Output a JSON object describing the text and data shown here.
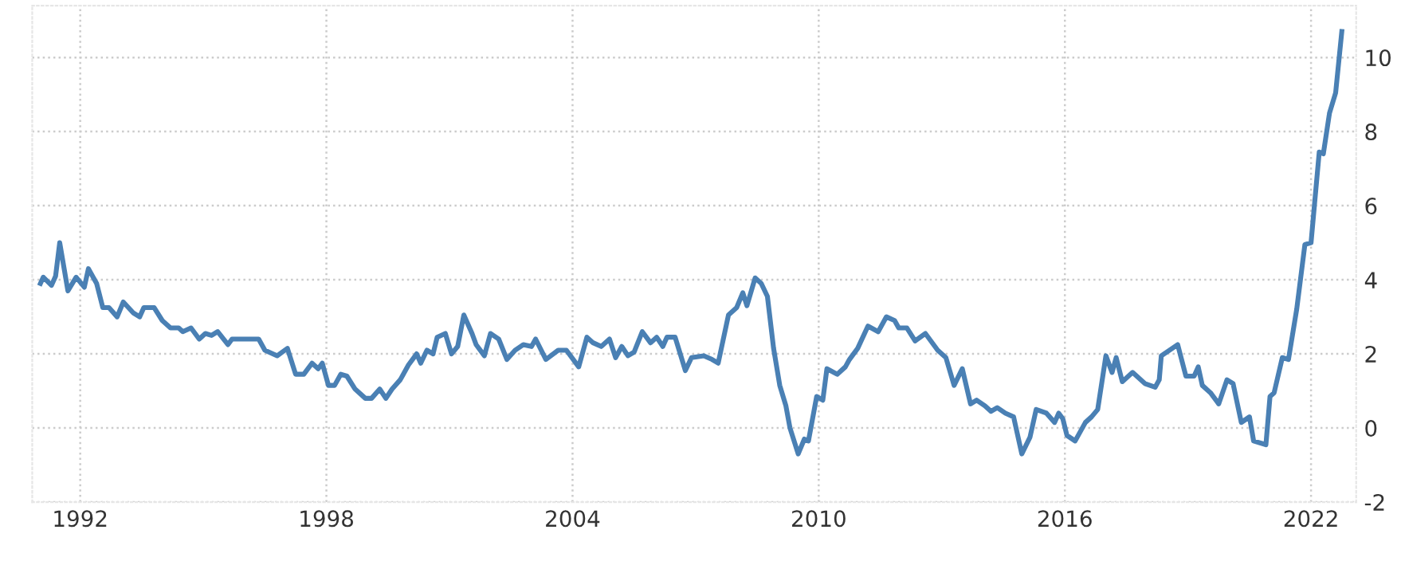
{
  "chart_data": {
    "type": "line",
    "grid": true,
    "marker": "none",
    "line_style": "solid",
    "xlim": [
      1990.83,
      2023.1
    ],
    "xticks": [
      1992,
      1998,
      2004,
      2010,
      2016,
      2022
    ],
    "ylim": [
      -2,
      11.4
    ],
    "yticks": [
      -2,
      0,
      2,
      4,
      6,
      8,
      10
    ],
    "series": [
      {
        "color": "#4a80b4",
        "x": [
          1991.03,
          1991.1,
          1991.3,
          1991.4,
          1991.5,
          1991.7,
          1991.9,
          1992.1,
          1992.2,
          1992.4,
          1992.55,
          1992.7,
          1992.9,
          1993.05,
          1993.3,
          1993.45,
          1993.55,
          1993.8,
          1994.0,
          1994.2,
          1994.4,
          1994.5,
          1994.7,
          1994.9,
          1995.05,
          1995.2,
          1995.35,
          1995.6,
          1995.7,
          1996.35,
          1996.5,
          1996.8,
          1997.05,
          1997.25,
          1997.45,
          1997.65,
          1997.8,
          1997.9,
          1998.05,
          1998.2,
          1998.35,
          1998.5,
          1998.7,
          1998.95,
          1999.1,
          1999.3,
          1999.45,
          1999.6,
          1999.8,
          2000.0,
          2000.2,
          2000.3,
          2000.45,
          2000.6,
          2000.7,
          2000.9,
          2001.05,
          2001.2,
          2001.35,
          2001.55,
          2001.65,
          2001.85,
          2002.0,
          2002.2,
          2002.4,
          2002.6,
          2002.8,
          2003.0,
          2003.1,
          2003.35,
          2003.65,
          2003.85,
          2004.15,
          2004.35,
          2004.5,
          2004.7,
          2004.9,
          2005.05,
          2005.2,
          2005.35,
          2005.5,
          2005.7,
          2005.9,
          2006.05,
          2006.2,
          2006.3,
          2006.5,
          2006.75,
          2006.9,
          2007.2,
          2007.4,
          2007.55,
          2007.8,
          2008.0,
          2008.15,
          2008.25,
          2008.45,
          2008.6,
          2008.75,
          2008.9,
          2009.05,
          2009.2,
          2009.3,
          2009.5,
          2009.65,
          2009.75,
          2009.95,
          2010.1,
          2010.2,
          2010.45,
          2010.65,
          2010.75,
          2010.95,
          2011.2,
          2011.45,
          2011.65,
          2011.85,
          2011.95,
          2012.15,
          2012.35,
          2012.6,
          2012.9,
          2013.1,
          2013.3,
          2013.5,
          2013.7,
          2013.85,
          2014.05,
          2014.2,
          2014.35,
          2014.55,
          2014.75,
          2014.95,
          2015.15,
          2015.3,
          2015.55,
          2015.75,
          2015.85,
          2015.95,
          2016.05,
          2016.25,
          2016.5,
          2016.65,
          2016.8,
          2017.0,
          2017.15,
          2017.25,
          2017.4,
          2017.65,
          2017.8,
          2017.95,
          2018.2,
          2018.3,
          2018.35,
          2018.55,
          2018.75,
          2018.95,
          2019.15,
          2019.25,
          2019.35,
          2019.55,
          2019.75,
          2019.95,
          2020.1,
          2020.3,
          2020.5,
          2020.6,
          2020.9,
          2021.0,
          2021.1,
          2021.3,
          2021.45,
          2021.65,
          2021.85,
          2022.0,
          2022.2,
          2022.3,
          2022.45,
          2022.6,
          2022.75
        ],
        "values": [
          3.9,
          4.07,
          3.85,
          4.1,
          5.0,
          3.7,
          4.07,
          3.8,
          4.3,
          3.9,
          3.25,
          3.25,
          3.0,
          3.4,
          3.1,
          3.0,
          3.25,
          3.25,
          2.9,
          2.7,
          2.7,
          2.6,
          2.7,
          2.4,
          2.55,
          2.5,
          2.6,
          2.25,
          2.4,
          2.4,
          2.1,
          1.95,
          2.15,
          1.45,
          1.45,
          1.75,
          1.6,
          1.75,
          1.15,
          1.15,
          1.45,
          1.4,
          1.05,
          0.8,
          0.8,
          1.05,
          0.8,
          1.05,
          1.3,
          1.7,
          2.0,
          1.75,
          2.1,
          2.0,
          2.45,
          2.55,
          2.0,
          2.2,
          3.05,
          2.55,
          2.25,
          1.95,
          2.55,
          2.4,
          1.85,
          2.1,
          2.25,
          2.2,
          2.4,
          1.85,
          2.1,
          2.1,
          1.65,
          2.45,
          2.3,
          2.2,
          2.4,
          1.9,
          2.2,
          1.95,
          2.05,
          2.6,
          2.3,
          2.45,
          2.2,
          2.45,
          2.45,
          1.55,
          1.9,
          1.95,
          1.85,
          1.75,
          3.05,
          3.25,
          3.65,
          3.3,
          4.05,
          3.9,
          3.55,
          2.15,
          1.15,
          0.6,
          0.0,
          -0.7,
          -0.3,
          -0.35,
          0.85,
          0.75,
          1.6,
          1.45,
          1.65,
          1.85,
          2.15,
          2.75,
          2.6,
          3.0,
          2.9,
          2.7,
          2.7,
          2.35,
          2.55,
          2.1,
          1.9,
          1.15,
          1.6,
          0.65,
          0.75,
          0.6,
          0.45,
          0.55,
          0.4,
          0.3,
          -0.7,
          -0.25,
          0.5,
          0.4,
          0.15,
          0.4,
          0.25,
          -0.2,
          -0.35,
          0.15,
          0.3,
          0.5,
          1.95,
          1.5,
          1.9,
          1.25,
          1.5,
          1.35,
          1.2,
          1.1,
          1.3,
          1.95,
          2.1,
          2.25,
          1.4,
          1.4,
          1.65,
          1.15,
          0.95,
          0.65,
          1.3,
          1.2,
          0.15,
          0.3,
          -0.35,
          -0.45,
          0.85,
          0.95,
          1.9,
          1.85,
          3.2,
          4.95,
          5.0,
          7.45,
          7.4,
          8.5,
          9.05,
          10.7
        ]
      }
    ]
  }
}
